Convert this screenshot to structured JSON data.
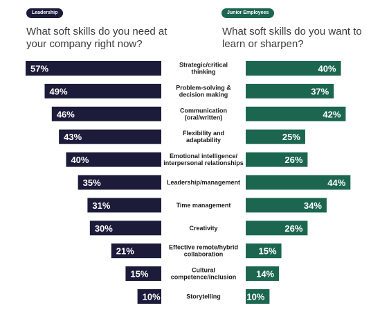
{
  "leadership": {
    "badge": "Leadership",
    "question": "What soft skills do you need at your company right now?"
  },
  "junior": {
    "badge": "Junior Employees",
    "question": "What soft skills do you want to learn or sharpen?"
  },
  "colors": {
    "leadership": "#1c1b3a",
    "junior": "#1c6650"
  },
  "chart_data": {
    "type": "bar",
    "orientation": "horizontal-diverging",
    "categories": [
      [
        "Strategic/critical",
        "thinking"
      ],
      [
        "Problem-solving &",
        "decision making"
      ],
      [
        "Communication",
        "(oral/written)"
      ],
      [
        "Flexibility and",
        "adaptability"
      ],
      [
        "Emotional intelligence/",
        "interpersonal relationships"
      ],
      [
        "Leadership/management"
      ],
      [
        "Time management"
      ],
      [
        "Creativity"
      ],
      [
        "Effective remote/hybrid",
        "collaboration"
      ],
      [
        "Cultural",
        "competence/inclusion"
      ],
      [
        "Storytelling"
      ]
    ],
    "series": [
      {
        "name": "Leadership",
        "values": [
          57,
          49,
          46,
          43,
          40,
          35,
          31,
          30,
          21,
          15,
          10
        ]
      },
      {
        "name": "Junior Employees",
        "values": [
          40,
          37,
          42,
          25,
          26,
          44,
          34,
          26,
          15,
          14,
          10
        ]
      }
    ],
    "value_suffix": "%",
    "xlim": [
      0,
      60
    ]
  }
}
